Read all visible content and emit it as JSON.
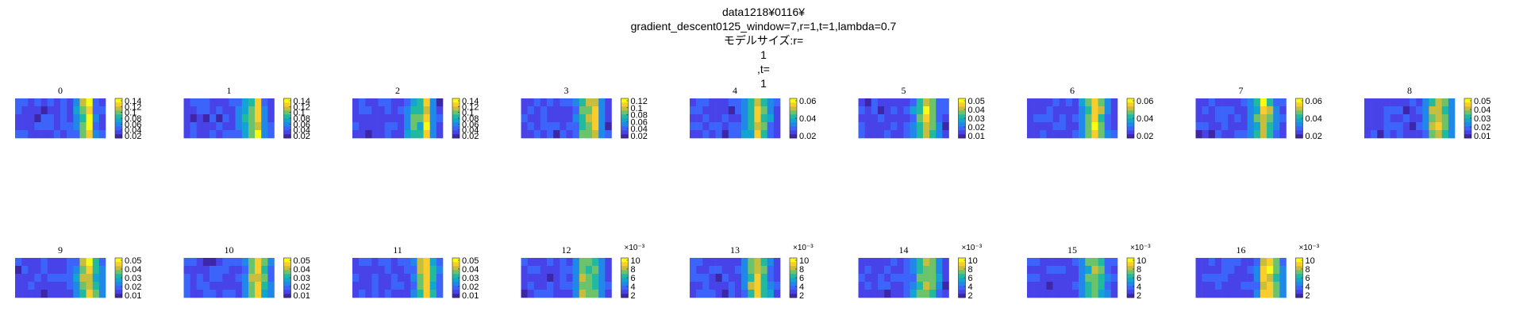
{
  "figure": {
    "title_lines": [
      "data1218¥0116¥",
      "gradient_descent0125_window=7,r=1,t=1,lambda=0.7",
      "モデルサイズ:r=",
      "1",
      ",t=",
      "1"
    ]
  },
  "colormap": [
    "#3e26a8",
    "#4743e8",
    "#3c64fb",
    "#1f88e8",
    "#13a5d2",
    "#21b9a0",
    "#6bc46b",
    "#c9bd3c",
    "#f9cd2c",
    "#f9fb14"
  ],
  "chart_data": {
    "type": "heatmap",
    "grid": "off",
    "cell_rows": 5,
    "cell_cols": 14,
    "panels": [
      {
        "title": "0",
        "colorbar_ticks": [
          "0.14",
          "0.12",
          "0.1",
          "0.08",
          "0.06",
          "0.04",
          "0.02"
        ],
        "exponent": "",
        "hot_cols": [
          10,
          11
        ],
        "hot_strength": [
          0.7,
          0.95
        ]
      },
      {
        "title": "1",
        "colorbar_ticks": [
          "0.14",
          "0.12",
          "0.1",
          "0.08",
          "0.06",
          "0.04",
          "0.02"
        ],
        "exponent": "",
        "hot_cols": [
          9,
          10,
          11
        ],
        "hot_strength": [
          0.55,
          0.65,
          0.9
        ]
      },
      {
        "title": "2",
        "colorbar_ticks": [
          "0.14",
          "0.12",
          "0.1",
          "0.08",
          "0.06",
          "0.04",
          "0.02"
        ],
        "exponent": "",
        "hot_cols": [
          9,
          10,
          11
        ],
        "hot_strength": [
          0.55,
          0.6,
          0.9
        ]
      },
      {
        "title": "3",
        "colorbar_ticks": [
          "0.12",
          "0.1",
          "0.08",
          "0.06",
          "0.04",
          "0.02"
        ],
        "exponent": "",
        "hot_cols": [
          9,
          10,
          11
        ],
        "hot_strength": [
          0.6,
          0.7,
          0.85
        ]
      },
      {
        "title": "4",
        "colorbar_ticks": [
          "0.06",
          "0.04",
          "0.02"
        ],
        "exponent": "",
        "hot_cols": [
          9,
          10,
          11
        ],
        "hot_strength": [
          0.6,
          0.85,
          0.6
        ]
      },
      {
        "title": "5",
        "colorbar_ticks": [
          "0.05",
          "0.04",
          "0.03",
          "0.02",
          "0.01"
        ],
        "exponent": "",
        "hot_cols": [
          9,
          10,
          11
        ],
        "hot_strength": [
          0.6,
          0.85,
          0.7
        ]
      },
      {
        "title": "6",
        "colorbar_ticks": [
          "0.06",
          "0.04",
          "0.02"
        ],
        "exponent": "",
        "hot_cols": [
          9,
          10,
          11
        ],
        "hot_strength": [
          0.65,
          0.9,
          0.65
        ]
      },
      {
        "title": "7",
        "colorbar_ticks": [
          "0.06",
          "0.04",
          "0.02"
        ],
        "exponent": "",
        "hot_cols": [
          9,
          10,
          11
        ],
        "hot_strength": [
          0.6,
          0.85,
          0.65
        ]
      },
      {
        "title": "8",
        "colorbar_ticks": [
          "0.05",
          "0.04",
          "0.03",
          "0.02",
          "0.01"
        ],
        "exponent": "",
        "hot_cols": [
          10,
          11,
          12
        ],
        "hot_strength": [
          0.7,
          0.85,
          0.65
        ]
      },
      {
        "title": "9",
        "colorbar_ticks": [
          "0.05",
          "0.04",
          "0.03",
          "0.02",
          "0.01"
        ],
        "exponent": "",
        "hot_cols": [
          10,
          11,
          12
        ],
        "hot_strength": [
          0.7,
          0.85,
          0.6
        ]
      },
      {
        "title": "10",
        "colorbar_ticks": [
          "0.05",
          "0.04",
          "0.03",
          "0.02",
          "0.01"
        ],
        "exponent": "",
        "hot_cols": [
          10,
          11,
          12
        ],
        "hot_strength": [
          0.7,
          0.85,
          0.6
        ]
      },
      {
        "title": "11",
        "colorbar_ticks": [
          "0.05",
          "0.04",
          "0.03",
          "0.02",
          "0.01"
        ],
        "exponent": "",
        "hot_cols": [
          10,
          11,
          12
        ],
        "hot_strength": [
          0.7,
          0.85,
          0.6
        ]
      },
      {
        "title": "12",
        "colorbar_ticks": [
          "10",
          "8",
          "6",
          "4",
          "2"
        ],
        "exponent": "×10⁻³",
        "hot_cols": [
          9,
          10,
          11
        ],
        "hot_strength": [
          0.75,
          0.65,
          0.6
        ]
      },
      {
        "title": "13",
        "colorbar_ticks": [
          "10",
          "8",
          "6",
          "4",
          "2"
        ],
        "exponent": "×10⁻³",
        "hot_cols": [
          9,
          10,
          11
        ],
        "hot_strength": [
          0.65,
          0.9,
          0.6
        ]
      },
      {
        "title": "14",
        "colorbar_ticks": [
          "10",
          "8",
          "6",
          "4",
          "2"
        ],
        "exponent": "×10⁻³",
        "hot_cols": [
          9,
          10,
          11
        ],
        "hot_strength": [
          0.6,
          0.7,
          0.6
        ]
      },
      {
        "title": "15",
        "colorbar_ticks": [
          "10",
          "8",
          "6",
          "4",
          "2"
        ],
        "exponent": "×10⁻³",
        "hot_cols": [
          9,
          10,
          11
        ],
        "hot_strength": [
          0.6,
          0.75,
          0.6
        ]
      },
      {
        "title": "16",
        "colorbar_ticks": [
          "10",
          "8",
          "6",
          "4",
          "2"
        ],
        "exponent": "×10⁻³",
        "hot_cols": [
          10,
          11,
          12
        ],
        "hot_strength": [
          0.8,
          0.9,
          0.6
        ]
      }
    ]
  }
}
